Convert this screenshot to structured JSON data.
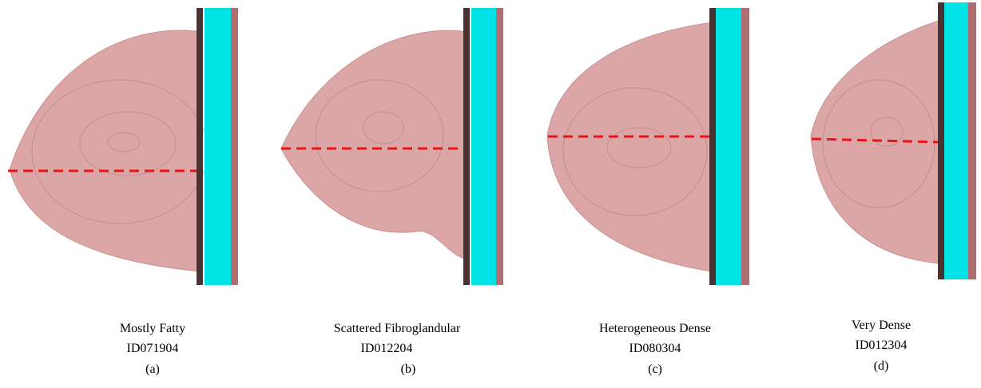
{
  "panels": [
    {
      "density": "Mostly Fatty",
      "id": "ID071904",
      "letter": "(a)"
    },
    {
      "density": "Scattered Fibroglandular",
      "id": "ID012204",
      "letter": "(b)"
    },
    {
      "density": "Heterogeneous Dense",
      "id": "ID080304",
      "letter": "(c)"
    },
    {
      "density": "Very Dense",
      "id": "ID012304",
      "letter": "(d)"
    }
  ]
}
